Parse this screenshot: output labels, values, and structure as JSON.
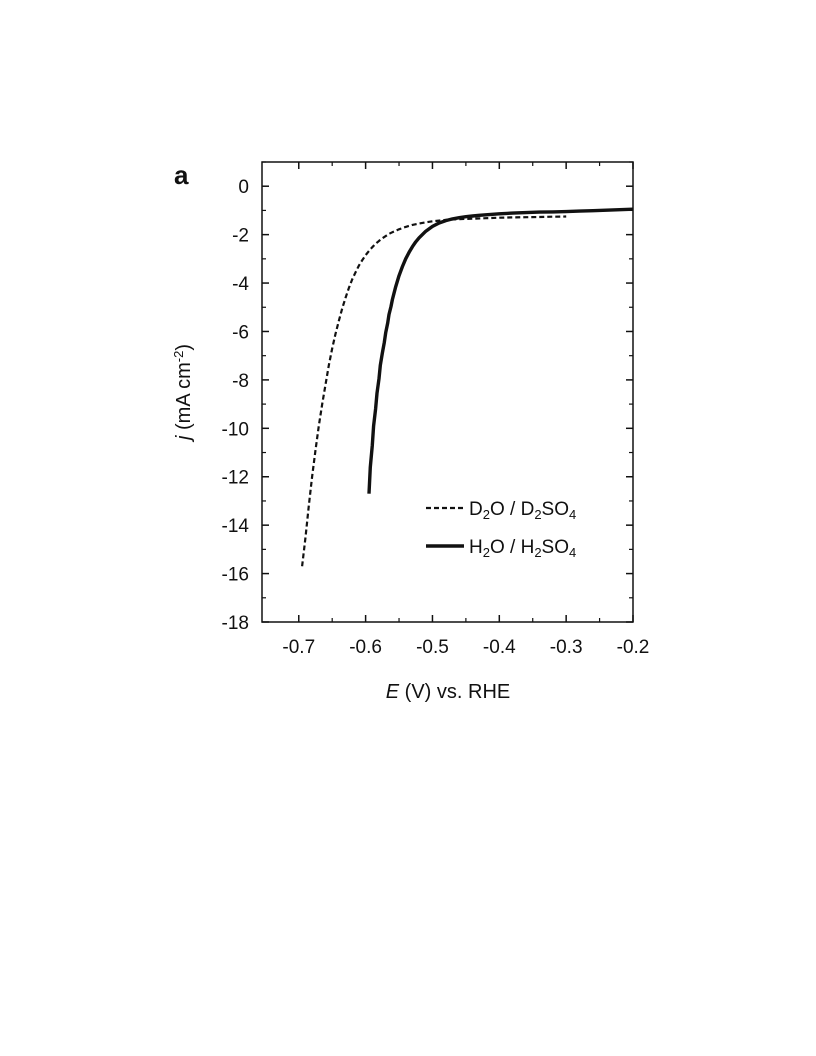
{
  "panel_label": "a",
  "chart_data": {
    "type": "line",
    "xlabel": {
      "var": "E",
      "rest": " (V) vs. RHE"
    },
    "ylabel": {
      "var": "j",
      "rest": " (mA cm",
      "sup": "-2",
      "close": ")"
    },
    "xlim": [
      -0.755,
      -0.2
    ],
    "ylim": [
      -18,
      1
    ],
    "x_ticks": [
      -0.7,
      -0.6,
      -0.5,
      -0.4,
      -0.3,
      -0.2
    ],
    "x_tick_labels": [
      "-0.7",
      "-0.6",
      "-0.5",
      "-0.4",
      "-0.3",
      "-0.2"
    ],
    "y_ticks": [
      0,
      -2,
      -4,
      -6,
      -8,
      -10,
      -12,
      -14,
      -16,
      -18
    ],
    "y_tick_labels": [
      "0",
      "-2",
      "-4",
      "-6",
      "-8",
      "-10",
      "-12",
      "-14",
      "-16",
      "-18"
    ],
    "grid": false,
    "legend_position": "bottom-right",
    "series": [
      {
        "name": "D2O / D2SO4",
        "legend_parts": [
          {
            "t": "D"
          },
          {
            "t": "2",
            "sub": true
          },
          {
            "t": "O / D"
          },
          {
            "t": "2",
            "sub": true
          },
          {
            "t": "SO"
          },
          {
            "t": "4",
            "sub": true
          }
        ],
        "style": "dashed",
        "x": [
          -0.695,
          -0.69,
          -0.685,
          -0.68,
          -0.675,
          -0.67,
          -0.665,
          -0.66,
          -0.655,
          -0.65,
          -0.645,
          -0.64,
          -0.635,
          -0.63,
          -0.625,
          -0.62,
          -0.615,
          -0.61,
          -0.605,
          -0.6,
          -0.595,
          -0.59,
          -0.585,
          -0.58,
          -0.575,
          -0.57,
          -0.565,
          -0.56,
          -0.55,
          -0.54,
          -0.53,
          -0.52,
          -0.51,
          -0.5,
          -0.48,
          -0.46,
          -0.44,
          -0.42,
          -0.4,
          -0.38,
          -0.36,
          -0.34,
          -0.32,
          -0.3
        ],
        "values": [
          -15.7,
          -14.5,
          -13.2,
          -12.0,
          -10.9,
          -9.9,
          -9.0,
          -8.2,
          -7.4,
          -6.7,
          -6.1,
          -5.55,
          -5.05,
          -4.6,
          -4.2,
          -3.85,
          -3.55,
          -3.28,
          -3.05,
          -2.85,
          -2.67,
          -2.52,
          -2.38,
          -2.26,
          -2.15,
          -2.06,
          -1.97,
          -1.9,
          -1.78,
          -1.68,
          -1.6,
          -1.54,
          -1.49,
          -1.45,
          -1.39,
          -1.36,
          -1.34,
          -1.32,
          -1.3,
          -1.29,
          -1.28,
          -1.27,
          -1.26,
          -1.25
        ]
      },
      {
        "name": "H2O / H2SO4",
        "legend_parts": [
          {
            "t": "H"
          },
          {
            "t": "2",
            "sub": true
          },
          {
            "t": "O / H"
          },
          {
            "t": "2",
            "sub": true
          },
          {
            "t": "SO"
          },
          {
            "t": "4",
            "sub": true
          }
        ],
        "style": "solid",
        "x": [
          -0.595,
          -0.593,
          -0.59,
          -0.588,
          -0.585,
          -0.583,
          -0.58,
          -0.578,
          -0.575,
          -0.572,
          -0.57,
          -0.567,
          -0.565,
          -0.562,
          -0.56,
          -0.555,
          -0.55,
          -0.545,
          -0.54,
          -0.535,
          -0.53,
          -0.525,
          -0.52,
          -0.51,
          -0.5,
          -0.49,
          -0.48,
          -0.47,
          -0.46,
          -0.45,
          -0.44,
          -0.43,
          -0.42,
          -0.41,
          -0.4,
          -0.38,
          -0.36,
          -0.34,
          -0.32,
          -0.3,
          -0.28,
          -0.26,
          -0.24,
          -0.22,
          -0.2
        ],
        "values": [
          -12.7,
          -11.6,
          -10.7,
          -9.9,
          -9.2,
          -8.55,
          -7.95,
          -7.4,
          -6.9,
          -6.45,
          -6.05,
          -5.65,
          -5.3,
          -4.97,
          -4.68,
          -4.15,
          -3.7,
          -3.32,
          -3.0,
          -2.73,
          -2.5,
          -2.3,
          -2.13,
          -1.86,
          -1.66,
          -1.52,
          -1.42,
          -1.35,
          -1.3,
          -1.26,
          -1.23,
          -1.2,
          -1.18,
          -1.16,
          -1.14,
          -1.11,
          -1.09,
          -1.07,
          -1.06,
          -1.05,
          -1.03,
          -1.01,
          -0.99,
          -0.97,
          -0.95
        ]
      }
    ]
  }
}
